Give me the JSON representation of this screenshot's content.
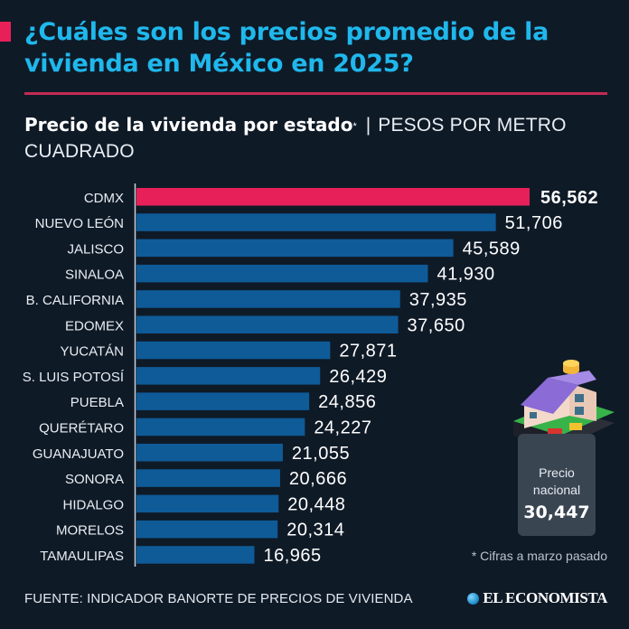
{
  "header": {
    "title": "¿Cuáles son los precios promedio de la vivienda en México en 2025?",
    "subtitle_main": "Precio de la vivienda por estado",
    "subtitle_mark": "*",
    "subtitle_separator": "|",
    "subtitle_unit": "PESOS POR METRO CUADRADO"
  },
  "colors": {
    "title": "#1fb8ec",
    "accent": "#e8205a",
    "bar": "#0e5b98",
    "highlight_bar": "#e8205a",
    "background": "#0f1a27"
  },
  "chart_data": {
    "type": "bar",
    "orientation": "horizontal",
    "title": "Precio de la vivienda por estado",
    "xlabel": "",
    "ylabel": "",
    "unit": "Pesos por metro cuadrado",
    "xlim": [
      0,
      56562
    ],
    "grid": false,
    "highlight": "CDMX",
    "categories": [
      "CDMX",
      "NUEVO LEÓN",
      "JALISCO",
      "SINALOA",
      "B. CALIFORNIA",
      "EDOMEX",
      "YUCATÁN",
      "S. LUIS POTOSÍ",
      "PUEBLA",
      "QUERÉTARO",
      "GUANAJUATO",
      "SONORA",
      "HIDALGO",
      "MORELOS",
      "TAMAULIPAS"
    ],
    "values": [
      56562,
      51706,
      45589,
      41930,
      37935,
      37650,
      27871,
      26429,
      24856,
      24227,
      21055,
      20666,
      20448,
      20314,
      16965
    ],
    "value_labels": [
      "56,562",
      "51,706",
      "45,589",
      "41,930",
      "37,935",
      "37,650",
      "27,871",
      "26,429",
      "24,856",
      "24,227",
      "21,055",
      "20,666",
      "20,448",
      "20,314",
      "16,965"
    ]
  },
  "national": {
    "label": "Precio nacional",
    "value": "30,447",
    "icon": "house-with-coins-icon"
  },
  "footer": {
    "note": "* Cifras a marzo pasado",
    "source": "FUENTE: INDICADOR BANORTE DE PRECIOS DE VIVIENDA",
    "brand": "EL ECONOMISTA"
  }
}
